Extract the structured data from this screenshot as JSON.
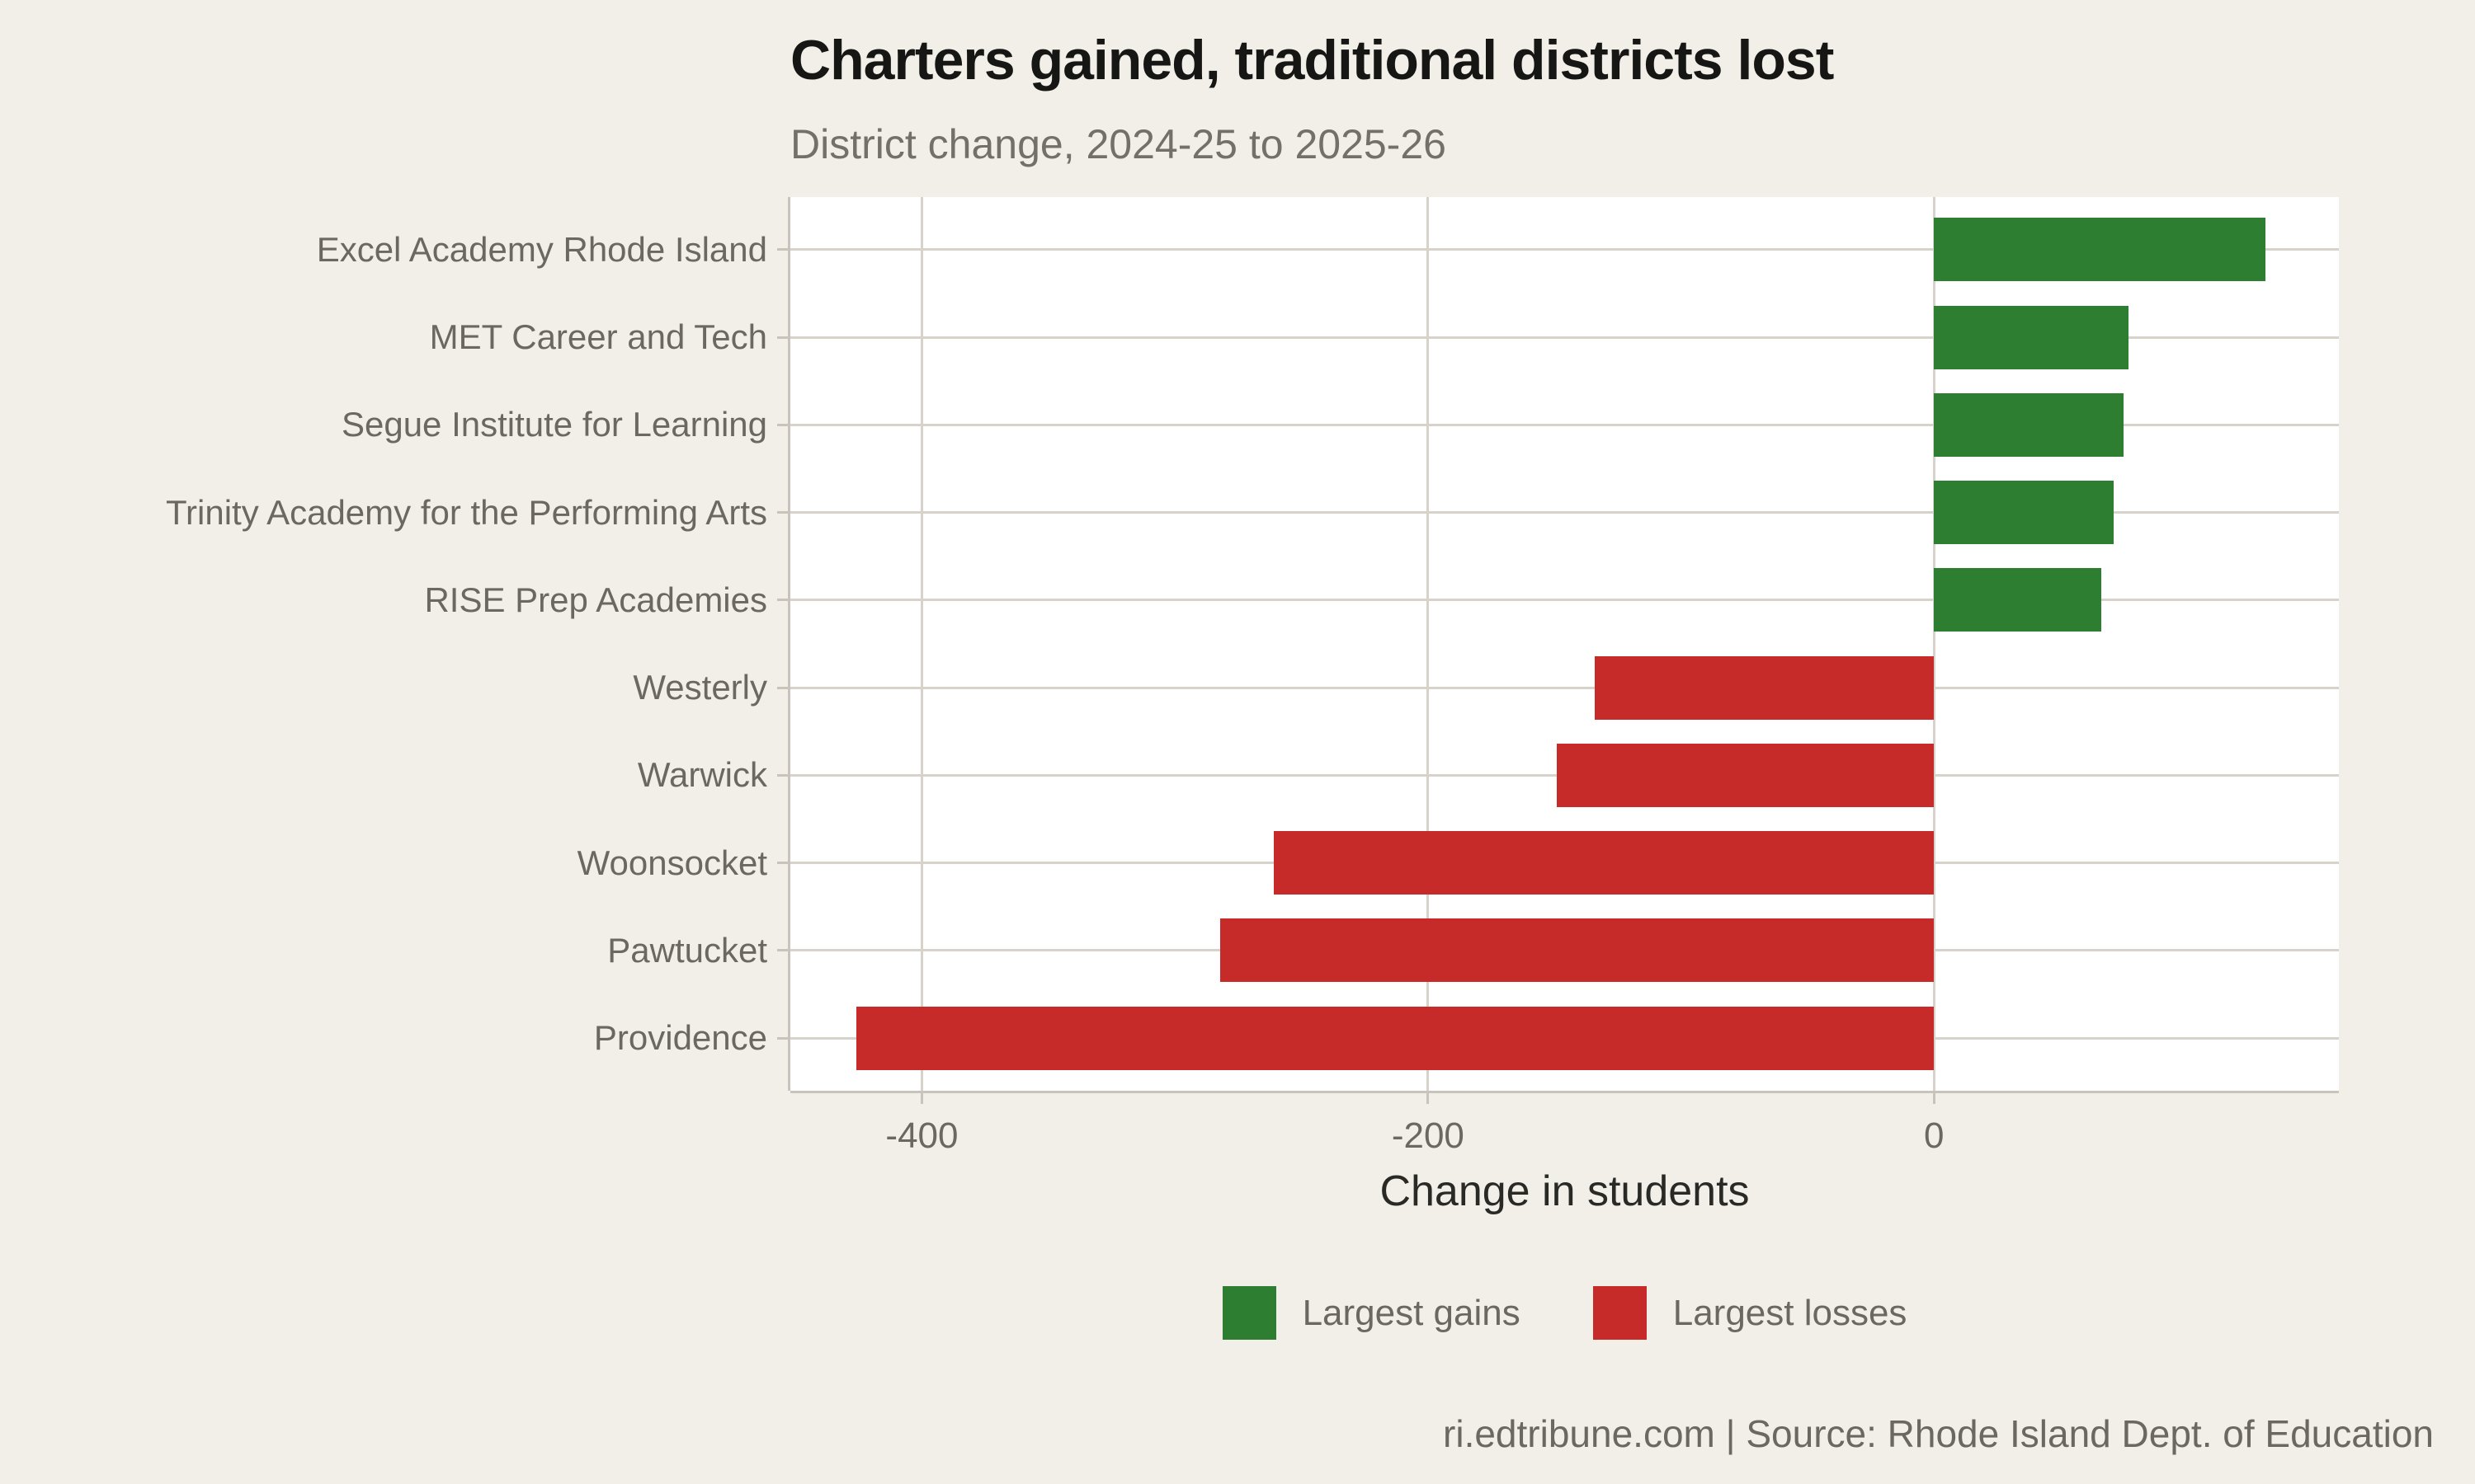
{
  "page": {
    "background": "#f2efe8",
    "panel_background": "#ffffff"
  },
  "header": {
    "title": "Charters gained, traditional districts lost",
    "subtitle": "District change, 2024-25 to 2025-26"
  },
  "chart_data": {
    "type": "bar",
    "orientation": "horizontal",
    "title": "Charters gained, traditional districts lost",
    "subtitle": "District change, 2024-25 to 2025-26",
    "xlabel": "Change in students",
    "ylabel": "",
    "categories": [
      "Excel Academy Rhode Island",
      "MET Career and Tech",
      "Segue Institute for Learning",
      "Trinity Academy for the Performing Arts",
      "RISE Prep Academies",
      "Westerly",
      "Warwick",
      "Woonsocket",
      "Pawtucket",
      "Providence"
    ],
    "values": [
      131,
      77,
      75,
      71,
      66,
      -134,
      -149,
      -261,
      -282,
      -426
    ],
    "groups": [
      "gain",
      "gain",
      "gain",
      "gain",
      "gain",
      "loss",
      "loss",
      "loss",
      "loss",
      "loss"
    ],
    "colors": {
      "gain": "#2e7e32",
      "loss": "#c62a29"
    },
    "x_ticks": [
      -400,
      -200,
      0
    ],
    "x_tick_labels": [
      "-400",
      "-200",
      "0"
    ],
    "xlim": [
      -452,
      160
    ],
    "grid": true,
    "legend_position": "bottom",
    "legend": [
      {
        "label": "Largest gains",
        "color_key": "gain"
      },
      {
        "label": "Largest losses",
        "color_key": "loss"
      }
    ]
  },
  "footer": {
    "credit": "ri.edtribune.com | Source: Rhode Island Dept. of Education"
  }
}
